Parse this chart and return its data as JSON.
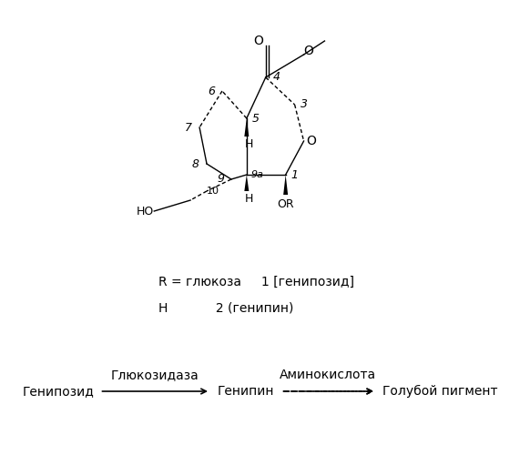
{
  "title": "",
  "bg_color": "#ffffff",
  "r_line1": "R = глюкоза     1 [генипозид]",
  "r_line2": "H            2 (генипин)",
  "reaction_label1": "Глюкозидаза",
  "reaction_label2": "Аминокислота",
  "react_start": "Генипозид",
  "react_mid": "Генипин",
  "react_end": "Голубой пигмент",
  "font_size_labels": 10,
  "font_size_reaction": 10,
  "font_size_struct": 9
}
